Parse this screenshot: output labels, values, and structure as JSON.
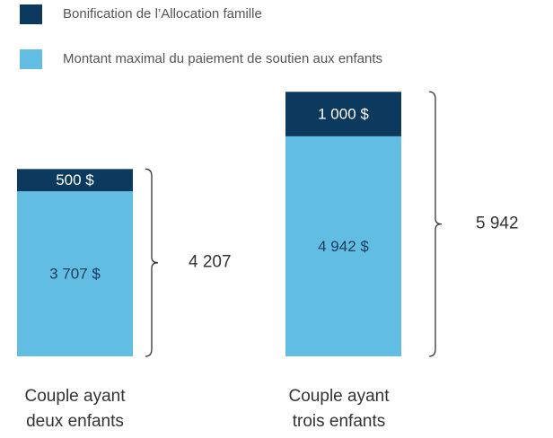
{
  "chart_data": {
    "type": "stacked_bar",
    "categories": [
      "Couple ayant deux enfants",
      "Couple ayant trois enfants"
    ],
    "series": [
      {
        "name": "Bonification de l’Allocation famille",
        "color": "#0b3a5e",
        "values": [
          500,
          1000
        ],
        "value_labels": [
          "500 $",
          "1 000 $"
        ]
      },
      {
        "name": "Montant maximal du paiement de soutien aux enfants",
        "color": "#62bde3",
        "values": [
          3707,
          4942
        ],
        "value_labels": [
          "3 707 $",
          "4 942 $"
        ]
      }
    ],
    "totals": [
      4207,
      5942
    ],
    "total_labels": [
      "4 207",
      "5 942"
    ]
  }
}
